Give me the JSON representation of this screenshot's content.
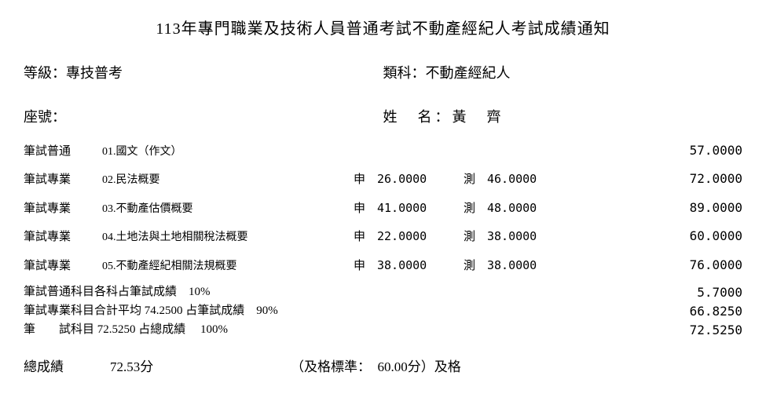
{
  "title": "113年專門職業及技術人員普通考試不動產經紀人考試成績通知",
  "level": {
    "label": "等級：",
    "value": "專技普考"
  },
  "category": {
    "label": "類科：",
    "value": "不動產經紀人"
  },
  "seat": {
    "label": "座號：",
    "value": ""
  },
  "name": {
    "label": "姓　名：",
    "value": "黃　齊"
  },
  "subjects": [
    {
      "type": "筆試普通",
      "name": "01.國文（作文）",
      "shen": "",
      "ce": "",
      "total": "57.0000"
    },
    {
      "type": "筆試專業",
      "name": "02.民法概要",
      "shen": "申　26.0000",
      "ce": "測　46.0000",
      "total": "72.0000"
    },
    {
      "type": "筆試專業",
      "name": "03.不動產估價概要",
      "shen": "申　41.0000",
      "ce": "測　48.0000",
      "total": "89.0000"
    },
    {
      "type": "筆試專業",
      "name": "04.土地法與土地相關稅法概要",
      "shen": "申　22.0000",
      "ce": "測　38.0000",
      "total": "60.0000"
    },
    {
      "type": "筆試專業",
      "name": "05.不動產經紀相關法規概要",
      "shen": "申　38.0000",
      "ce": "測　38.0000",
      "total": "76.0000"
    }
  ],
  "summary": [
    {
      "text": "筆試普通科目各科占筆試成績　10%",
      "value": "5.7000"
    },
    {
      "text": "筆試專業科目合計平均 74.2500 占筆試成績　90%",
      "value": "66.8250"
    },
    {
      "text": "筆　　試科目 72.5250 占總成績　 100%",
      "value": "72.5250"
    }
  ],
  "final": {
    "label": "總成績",
    "score": "72.53分",
    "pass": "（及格標準：　60.00分）及格"
  }
}
